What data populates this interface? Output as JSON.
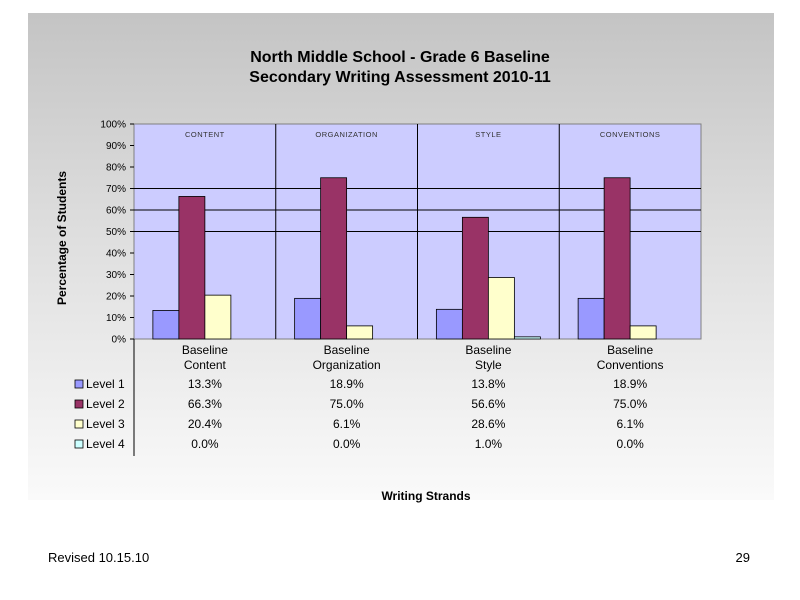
{
  "chart_data": {
    "type": "bar",
    "title": [
      "North Middle School - Grade 6 Baseline",
      "Secondary Writing Assessment 2010-11"
    ],
    "ylabel": "Percentage of Students",
    "xlabel": "Writing Strands",
    "ylim": [
      0,
      100
    ],
    "y_ticks": [
      "0%",
      "10%",
      "20%",
      "30%",
      "40%",
      "50%",
      "60%",
      "70%",
      "80%",
      "90%",
      "100%"
    ],
    "grid_lines_at": [
      50,
      60,
      70
    ],
    "strand_labels": [
      "CONTENT",
      "ORGANIZATION",
      "STYLE",
      "CONVENTIONS"
    ],
    "categories": [
      [
        "Baseline",
        "Content"
      ],
      [
        "Baseline",
        "Organization"
      ],
      [
        "Baseline",
        "Style"
      ],
      [
        "Baseline",
        "Conventions"
      ]
    ],
    "series": [
      {
        "name": "Level 1",
        "color": "#9999ff",
        "values": [
          13.3,
          18.9,
          13.8,
          18.9
        ],
        "labels": [
          "13.3%",
          "18.9%",
          "13.8%",
          "18.9%"
        ]
      },
      {
        "name": "Level 2",
        "color": "#993366",
        "values": [
          66.3,
          75.0,
          56.6,
          75.0
        ],
        "labels": [
          "66.3%",
          "75.0%",
          "56.6%",
          "75.0%"
        ]
      },
      {
        "name": "Level 3",
        "color": "#ffffcc",
        "values": [
          20.4,
          6.1,
          28.6,
          6.1
        ],
        "labels": [
          "20.4%",
          "6.1%",
          "28.6%",
          "6.1%"
        ]
      },
      {
        "name": "Level 4",
        "color": "#ccffff",
        "values": [
          0.0,
          0.0,
          1.0,
          0.0
        ],
        "labels": [
          "0.0%",
          "0.0%",
          "1.0%",
          "0.0%"
        ]
      }
    ],
    "plot_background": "#ccccff",
    "legend_placement": "data-table-below"
  },
  "footer": {
    "revised": "Revised  10.15.10",
    "page_number": "29"
  }
}
